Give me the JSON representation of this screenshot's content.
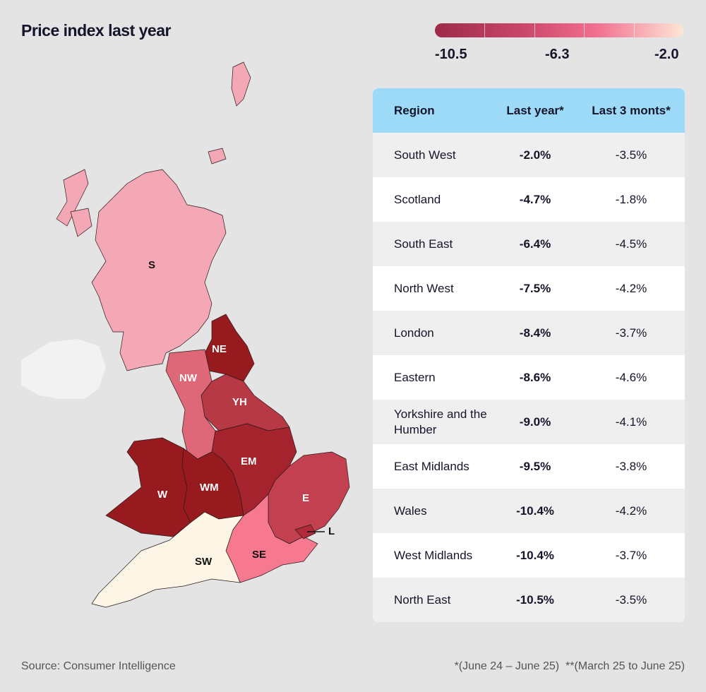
{
  "title": "Price index last year",
  "legend": {
    "min": "-10.5",
    "mid": "-6.3",
    "max": "-2.0",
    "colors": [
      "#9c2a48",
      "#c9466a",
      "#f26f90",
      "#fde6d6"
    ]
  },
  "table": {
    "headers": [
      "Region",
      "Last year*",
      "Last 3 monts*"
    ],
    "rows": [
      [
        "South West",
        "-2.0%",
        "-3.5%"
      ],
      [
        "Scotland",
        "-4.7%",
        "-1.8%"
      ],
      [
        "South East",
        "-6.4%",
        "-4.5%"
      ],
      [
        "North West",
        "-7.5%",
        "-4.2%"
      ],
      [
        "London",
        "-8.4%",
        "-3.7%"
      ],
      [
        "Eastern",
        "-8.6%",
        "-4.6%"
      ],
      [
        "Yorkshire and the Humber",
        "-9.0%",
        "-4.1%"
      ],
      [
        "East Midlands",
        "-9.5%",
        "-3.8%"
      ],
      [
        "Wales",
        "-10.4%",
        "-4.2%"
      ],
      [
        "West Midlands",
        "-10.4%",
        "-3.7%"
      ],
      [
        "North East",
        "-10.5%",
        "-3.5%"
      ]
    ]
  },
  "map": {
    "regions": [
      {
        "code": "S",
        "color": "#f4a7b4"
      },
      {
        "code": "NE",
        "color": "#961a1e"
      },
      {
        "code": "NW",
        "color": "#df6878"
      },
      {
        "code": "YH",
        "color": "#b73946"
      },
      {
        "code": "EM",
        "color": "#a5232d"
      },
      {
        "code": "W",
        "color": "#961a1e"
      },
      {
        "code": "WM",
        "color": "#961a1e"
      },
      {
        "code": "E",
        "color": "#c2404f"
      },
      {
        "code": "L",
        "color": "#b02a38"
      },
      {
        "code": "SE",
        "color": "#f6798f"
      },
      {
        "code": "SW",
        "color": "#fdf5e6"
      }
    ],
    "other_color": "#f2f2f2"
  },
  "chart_data": {
    "type": "choropleth",
    "title": "Price index last year",
    "color_scale": {
      "min": -10.5,
      "mid": -6.3,
      "max": -2.0
    },
    "regions": [
      "S",
      "NE",
      "NW",
      "YH",
      "EM",
      "W",
      "WM",
      "E",
      "L",
      "SE",
      "SW"
    ],
    "values": [
      -4.7,
      -10.5,
      -7.5,
      -9.0,
      -9.5,
      -10.4,
      -10.4,
      -8.6,
      -8.4,
      -6.4,
      -2.0
    ]
  },
  "footer": {
    "source": "Source: Consumer Intelligence",
    "note": "*(June 24 – June 25)  **(March 25 to June 25)"
  }
}
